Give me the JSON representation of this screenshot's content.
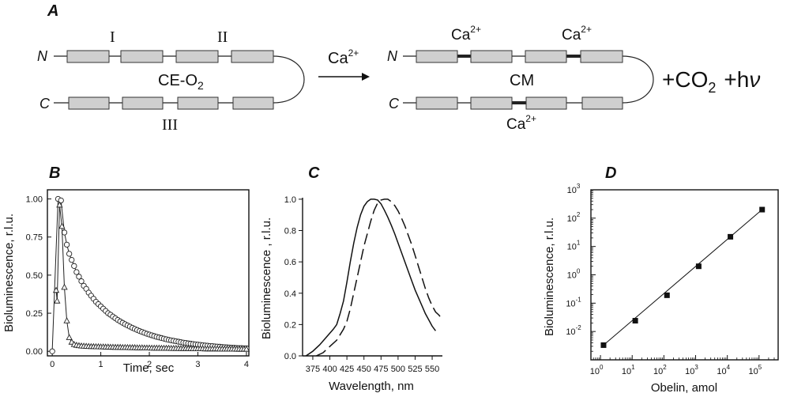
{
  "panel_a": {
    "letter": "A",
    "left_label_top": "I",
    "left_label_mid": "II",
    "left_label_bottom": "III",
    "left_complex": "CE-O",
    "left_complex_sub": "2",
    "n_term": "N",
    "c_term": "C",
    "arrow_label": "Ca",
    "arrow_label_sup": "2+",
    "right_ca_1": "Ca",
    "right_ca_2": "Ca",
    "right_ca_3": "Ca",
    "ca_sup": "2+",
    "right_complex": "CM",
    "products_co": "+CO",
    "products_co_sub": "2",
    "products_hv": "+h",
    "products_nu": "ν"
  },
  "chart_data": [
    {
      "type": "scatter",
      "panel": "B",
      "xlabel": "Time, sec",
      "ylabel": "Bioluminescence, r.l.u.",
      "xlim": [
        -0.1,
        4.05
      ],
      "ylim": [
        -0.03,
        1.06
      ],
      "xticks": [
        0,
        1,
        2,
        3,
        4
      ],
      "yticks": [
        0.0,
        0.25,
        0.5,
        0.75,
        1.0
      ],
      "ytick_labels": [
        "0.00",
        "0.25",
        "0.50",
        "0.75",
        "1.00"
      ],
      "series": [
        {
          "marker": "circle",
          "x": [
            0,
            0.12,
            0.18,
            0.25,
            0.3,
            0.35,
            0.4,
            0.45,
            0.5,
            0.55,
            0.6,
            0.65,
            0.7,
            0.75,
            0.8,
            0.85,
            0.9,
            0.95,
            1.0,
            1.05,
            1.1,
            1.15,
            1.2,
            1.25,
            1.3,
            1.35,
            1.4,
            1.45,
            1.5,
            1.55,
            1.6,
            1.65,
            1.7,
            1.75,
            1.8,
            1.85,
            1.9,
            1.95,
            2.0,
            2.05,
            2.1,
            2.15,
            2.2,
            2.25,
            2.3,
            2.35,
            2.4,
            2.45,
            2.5,
            2.55,
            2.6,
            2.65,
            2.7,
            2.75,
            2.8,
            2.85,
            2.9,
            2.95,
            3.0,
            3.05,
            3.1,
            3.15,
            3.2,
            3.25,
            3.3,
            3.35,
            3.4,
            3.45,
            3.5,
            3.55,
            3.6,
            3.65,
            3.7,
            3.75,
            3.8,
            3.85,
            3.9,
            3.95,
            4.0
          ],
          "y": [
            0.0,
            1.0,
            0.99,
            0.78,
            0.7,
            0.64,
            0.6,
            0.56,
            0.52,
            0.49,
            0.46,
            0.43,
            0.41,
            0.385,
            0.365,
            0.345,
            0.325,
            0.31,
            0.295,
            0.28,
            0.265,
            0.25,
            0.24,
            0.228,
            0.217,
            0.206,
            0.196,
            0.187,
            0.178,
            0.17,
            0.162,
            0.154,
            0.147,
            0.14,
            0.133,
            0.127,
            0.121,
            0.115,
            0.11,
            0.105,
            0.1,
            0.095,
            0.091,
            0.087,
            0.083,
            0.079,
            0.075,
            0.072,
            0.069,
            0.066,
            0.063,
            0.06,
            0.057,
            0.055,
            0.052,
            0.05,
            0.048,
            0.046,
            0.044,
            0.042,
            0.04,
            0.038,
            0.037,
            0.035,
            0.034,
            0.032,
            0.031,
            0.03,
            0.028,
            0.027,
            0.026,
            0.025,
            0.024,
            0.023,
            0.022,
            0.021,
            0.021,
            0.02,
            0.02
          ]
        },
        {
          "marker": "triangle",
          "x": [
            0.08,
            0.1,
            0.15,
            0.2,
            0.25,
            0.3,
            0.35,
            0.4,
            0.45,
            0.5,
            0.55,
            0.6,
            0.65,
            0.7,
            0.75,
            0.8,
            0.85,
            0.9,
            0.95,
            1.0,
            1.05,
            1.1,
            1.15,
            1.2,
            1.25,
            1.3,
            1.35,
            1.4,
            1.45,
            1.5,
            1.55,
            1.6,
            1.65,
            1.7,
            1.75,
            1.8,
            1.85,
            1.9,
            1.95,
            2.0,
            2.05,
            2.1,
            2.15,
            2.2,
            2.25,
            2.3,
            2.35,
            2.4,
            2.45,
            2.5,
            2.55,
            2.6,
            2.65,
            2.7,
            2.75,
            2.8,
            2.85,
            2.9,
            2.95,
            3.0,
            3.05,
            3.1,
            3.15,
            3.2,
            3.25,
            3.3,
            3.35,
            3.4,
            3.45,
            3.5,
            3.55,
            3.6,
            3.65,
            3.7,
            3.75,
            3.8,
            3.85,
            3.9,
            3.95,
            4.0
          ],
          "y": [
            0.4,
            0.33,
            0.96,
            0.82,
            0.42,
            0.2,
            0.09,
            0.06,
            0.045,
            0.04,
            0.037,
            0.035,
            0.034,
            0.033,
            0.032,
            0.031,
            0.031,
            0.03,
            0.03,
            0.029,
            0.029,
            0.028,
            0.028,
            0.027,
            0.027,
            0.026,
            0.026,
            0.026,
            0.025,
            0.025,
            0.025,
            0.024,
            0.024,
            0.024,
            0.023,
            0.023,
            0.023,
            0.022,
            0.022,
            0.022,
            0.021,
            0.021,
            0.021,
            0.021,
            0.02,
            0.02,
            0.02,
            0.02,
            0.019,
            0.019,
            0.019,
            0.019,
            0.018,
            0.018,
            0.018,
            0.018,
            0.018,
            0.017,
            0.017,
            0.017,
            0.017,
            0.017,
            0.016,
            0.016,
            0.016,
            0.016,
            0.016,
            0.016,
            0.015,
            0.015,
            0.015,
            0.015,
            0.015,
            0.015,
            0.015,
            0.014,
            0.014,
            0.014,
            0.014,
            0.014
          ]
        }
      ]
    },
    {
      "type": "line",
      "panel": "C",
      "xlabel": "Wavelength, nm",
      "ylabel": "Bioluminescence , r.l.u.",
      "xlim": [
        360,
        565
      ],
      "ylim": [
        0,
        1.06
      ],
      "xticks": [
        375,
        400,
        425,
        450,
        475,
        500,
        525,
        550
      ],
      "yticks": [
        0.0,
        0.2,
        0.4,
        0.6,
        0.8,
        1.0
      ],
      "ytick_labels": [
        "0.0",
        "0.2",
        "0.4",
        "0.6",
        "0.8",
        "1.0"
      ],
      "series": [
        {
          "style": "solid",
          "x": [
            365,
            375,
            385,
            395,
            405,
            410,
            415,
            420,
            425,
            430,
            435,
            440,
            445,
            450,
            455,
            460,
            465,
            470,
            475,
            480,
            485,
            490,
            495,
            500,
            505,
            510,
            515,
            520,
            525,
            530,
            535,
            540,
            545,
            550,
            555
          ],
          "y": [
            0.0,
            0.03,
            0.07,
            0.12,
            0.17,
            0.2,
            0.27,
            0.35,
            0.47,
            0.6,
            0.72,
            0.82,
            0.9,
            0.955,
            0.985,
            1.0,
            1.0,
            0.995,
            0.97,
            0.93,
            0.885,
            0.835,
            0.78,
            0.72,
            0.66,
            0.6,
            0.54,
            0.48,
            0.42,
            0.37,
            0.32,
            0.27,
            0.23,
            0.19,
            0.16
          ]
        },
        {
          "style": "dashed",
          "x": [
            380,
            390,
            400,
            410,
            420,
            425,
            430,
            440,
            450,
            460,
            465,
            470,
            475,
            480,
            485,
            490,
            495,
            500,
            505,
            510,
            515,
            520,
            525,
            530,
            535,
            540,
            545,
            550,
            555,
            560,
            565
          ],
          "y": [
            0.0,
            0.02,
            0.06,
            0.1,
            0.17,
            0.22,
            0.3,
            0.5,
            0.7,
            0.86,
            0.93,
            0.975,
            0.995,
            1.0,
            1.0,
            0.985,
            0.96,
            0.925,
            0.88,
            0.83,
            0.77,
            0.71,
            0.64,
            0.57,
            0.5,
            0.43,
            0.37,
            0.32,
            0.28,
            0.26,
            0.23
          ]
        }
      ]
    },
    {
      "type": "scatter",
      "panel": "D",
      "xlabel": "Obelin, amol",
      "ylabel": "Bioluminescence, r.l.u.",
      "x_scale": "log",
      "y_scale": "log",
      "xlim": [
        0.5,
        400000
      ],
      "ylim": [
        0.001,
        1000
      ],
      "xtick_exponents": [
        0,
        1,
        2,
        3,
        4,
        5
      ],
      "ytick_exponents": [
        -2,
        -1,
        0,
        1,
        2,
        3
      ],
      "tick_base": "10",
      "fit_line": true,
      "x": [
        1.25,
        12.5,
        125,
        1250,
        12500,
        125000
      ],
      "y": [
        0.0033,
        0.024,
        0.19,
        2.0,
        22,
        200
      ]
    }
  ]
}
